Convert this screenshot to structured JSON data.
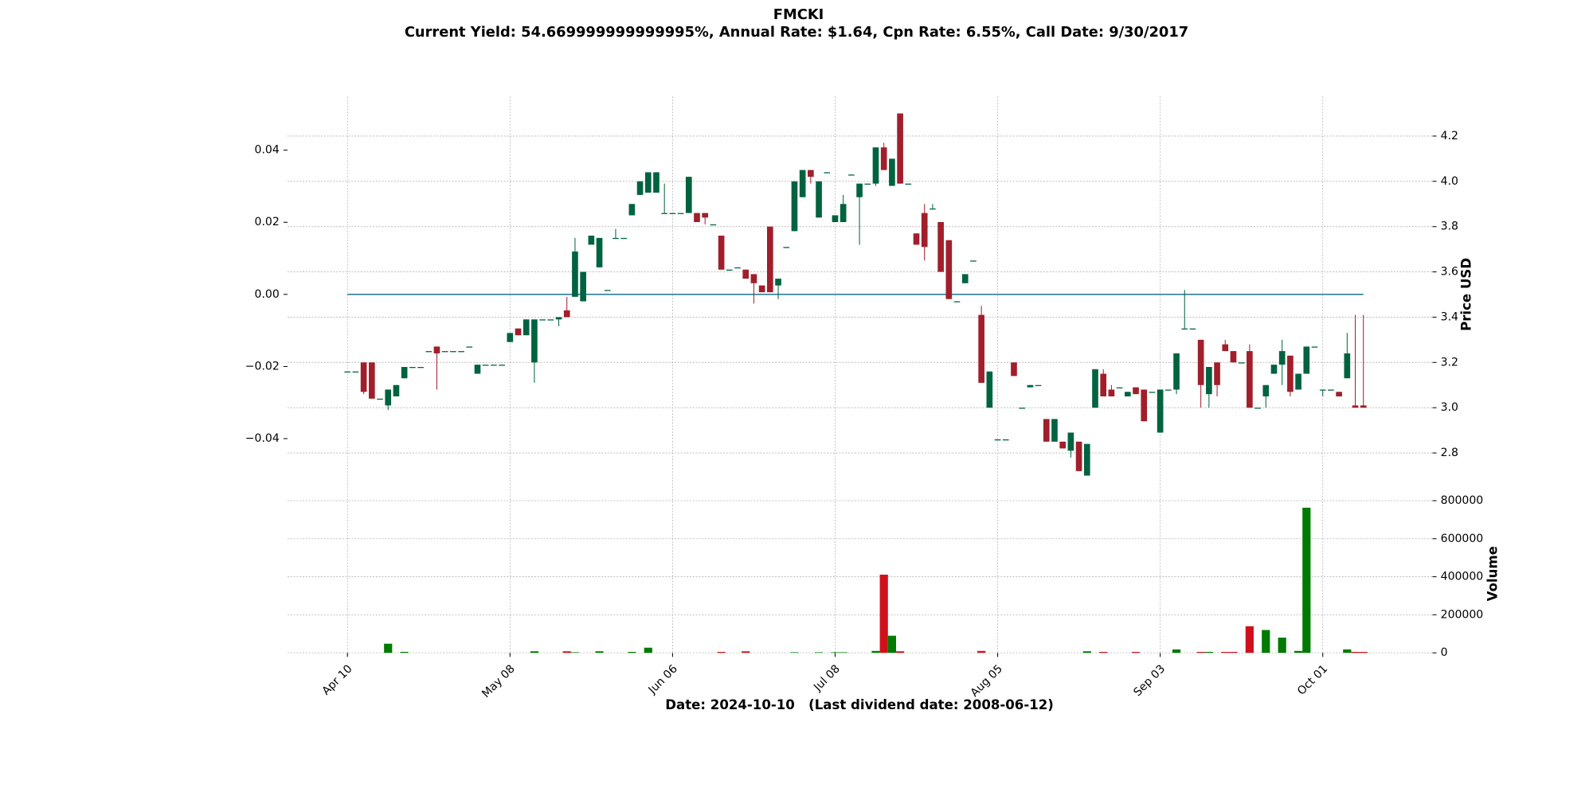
{
  "chart_data": {
    "type": "candlestick",
    "title": "FMCKI",
    "subtitle": "Current Yield: 54.669999999999995%, Annual Rate: $1.64, Cpn Rate: 6.55%, Call Date: 9/30/2017",
    "xlabel": "Date: 2024-10-10   (Last dividend date: 2008-06-12)",
    "ylabel": "Price USD",
    "categories": [
      "Apr 10",
      null,
      null,
      null,
      null,
      null,
      null,
      null,
      null,
      null,
      null,
      null,
      null,
      null,
      null,
      null,
      null,
      null,
      null,
      null,
      "May 08",
      null,
      null,
      null,
      null,
      null,
      null,
      null,
      null,
      null,
      null,
      null,
      null,
      null,
      null,
      null,
      null,
      null,
      null,
      null,
      "Jun 06",
      null,
      null,
      null,
      null,
      null,
      null,
      null,
      null,
      null,
      null,
      null,
      null,
      null,
      null,
      null,
      null,
      null,
      null,
      null,
      "Jul 08",
      null,
      null,
      null,
      null,
      null,
      null,
      null,
      null,
      null,
      null,
      null,
      null,
      null,
      null,
      null,
      null,
      null,
      null,
      null,
      "Aug 05",
      null,
      null,
      null,
      null,
      null,
      null,
      null,
      null,
      null,
      null,
      null,
      null,
      null,
      null,
      null,
      null,
      null,
      null,
      null,
      "Sep 03",
      null,
      null,
      null,
      null,
      null,
      null,
      null,
      null,
      null,
      null,
      null,
      null,
      null,
      null,
      null,
      null,
      null,
      null,
      null,
      "Oct 01",
      null,
      null,
      null,
      null,
      null
    ],
    "open": [
      3.16,
      3.16,
      3.2,
      3.2,
      3.04,
      3.01,
      3.05,
      3.13,
      3.18,
      3.18,
      3.25,
      3.27,
      3.25,
      3.25,
      3.25,
      3.27,
      3.15,
      3.19,
      3.19,
      3.19,
      3.29,
      3.35,
      3.32,
      3.2,
      3.39,
      3.39,
      3.39,
      3.43,
      3.49,
      3.47,
      3.72,
      3.62,
      3.52,
      3.75,
      3.75,
      3.85,
      3.94,
      3.95,
      3.95,
      3.86,
      3.86,
      3.86,
      3.86,
      3.86,
      3.86,
      3.81,
      3.76,
      3.61,
      3.62,
      3.61,
      3.59,
      3.54,
      3.8,
      3.54,
      3.71,
      3.78,
      3.93,
      4.05,
      3.84,
      4.04,
      3.82,
      3.82,
      4.03,
      3.93,
      3.99,
      3.99,
      4.15,
      3.98,
      4.3,
      3.99,
      3.77,
      3.86,
      3.88,
      3.82,
      3.74,
      3.47,
      3.55,
      3.65,
      3.41,
      3.0,
      2.86,
      2.86,
      3.2,
      3.0,
      3.09,
      3.1,
      2.95,
      2.85,
      2.85,
      2.81,
      2.85,
      2.7,
      3.0,
      3.15,
      3.08,
      3.09,
      3.05,
      3.09,
      3.08,
      3.07,
      2.89,
      3.08,
      3.08,
      3.35,
      3.35,
      3.3,
      3.06,
      3.2,
      3.28,
      3.25,
      3.2,
      3.25,
      3.0,
      3.05,
      3.15,
      3.19,
      3.23,
      3.08,
      3.15,
      3.27,
      3.08,
      3.08,
      3.07,
      3.13,
      3.01,
      3.01
    ],
    "high": [
      3.16,
      3.16,
      3.2,
      3.2,
      3.04,
      3.08,
      3.1,
      3.18,
      3.18,
      3.18,
      3.25,
      3.27,
      3.25,
      3.25,
      3.25,
      3.27,
      3.19,
      3.19,
      3.19,
      3.19,
      3.33,
      3.35,
      3.39,
      3.39,
      3.39,
      3.39,
      3.4,
      3.49,
      3.75,
      3.6,
      3.76,
      3.75,
      3.52,
      3.79,
      3.75,
      3.9,
      4.0,
      4.04,
      4.04,
      3.99,
      3.86,
      3.86,
      4.02,
      3.86,
      3.86,
      3.81,
      3.76,
      3.61,
      3.62,
      3.61,
      3.59,
      3.54,
      3.8,
      3.57,
      3.71,
      4.0,
      4.05,
      4.05,
      4.0,
      4.04,
      3.85,
      3.94,
      4.03,
      3.99,
      3.99,
      4.15,
      4.17,
      4.1,
      4.3,
      3.99,
      3.77,
      3.9,
      3.9,
      3.82,
      3.74,
      3.47,
      3.59,
      3.65,
      3.45,
      3.16,
      2.86,
      2.86,
      3.2,
      3.0,
      3.1,
      3.1,
      2.95,
      2.95,
      2.85,
      2.89,
      2.85,
      2.84,
      3.17,
      3.17,
      3.1,
      3.09,
      3.07,
      3.09,
      3.08,
      3.07,
      3.08,
      3.08,
      3.24,
      3.52,
      3.35,
      3.3,
      3.18,
      3.2,
      3.3,
      3.25,
      3.2,
      3.28,
      3.0,
      3.1,
      3.19,
      3.3,
      3.23,
      3.15,
      3.27,
      3.27,
      3.08,
      3.08,
      3.07,
      3.33,
      3.41,
      3.41
    ],
    "low": [
      3.16,
      3.16,
      3.06,
      3.04,
      3.04,
      2.99,
      3.05,
      3.13,
      3.18,
      3.18,
      3.25,
      3.08,
      3.25,
      3.25,
      3.25,
      3.27,
      3.15,
      3.19,
      3.19,
      3.19,
      3.29,
      3.32,
      3.32,
      3.11,
      3.39,
      3.39,
      3.36,
      3.4,
      3.49,
      3.47,
      3.72,
      3.62,
      3.52,
      3.75,
      3.75,
      3.85,
      3.94,
      3.95,
      3.95,
      3.86,
      3.86,
      3.86,
      3.86,
      3.82,
      3.81,
      3.81,
      3.61,
      3.61,
      3.62,
      3.57,
      3.46,
      3.51,
      3.51,
      3.48,
      3.71,
      3.78,
      3.93,
      3.99,
      3.84,
      4.04,
      3.82,
      3.82,
      4.03,
      3.72,
      3.99,
      3.98,
      4.05,
      3.98,
      3.99,
      3.99,
      3.72,
      3.65,
      3.88,
      3.6,
      3.48,
      3.47,
      3.55,
      3.65,
      3.11,
      3.0,
      2.86,
      2.86,
      3.14,
      3.0,
      3.09,
      3.1,
      2.85,
      2.85,
      2.82,
      2.78,
      2.72,
      2.7,
      3.0,
      3.05,
      3.05,
      3.09,
      3.05,
      3.06,
      2.94,
      3.07,
      2.89,
      3.08,
      3.06,
      3.35,
      3.35,
      3.0,
      3.0,
      3.05,
      3.25,
      3.2,
      3.2,
      3.0,
      3.0,
      3.0,
      3.15,
      3.1,
      3.05,
      3.08,
      3.15,
      3.27,
      3.05,
      3.08,
      3.05,
      3.13,
      3.0,
      3.0
    ],
    "close": [
      3.16,
      3.16,
      3.07,
      3.04,
      3.04,
      3.08,
      3.1,
      3.18,
      3.18,
      3.18,
      3.25,
      3.24,
      3.25,
      3.25,
      3.25,
      3.27,
      3.19,
      3.19,
      3.19,
      3.19,
      3.33,
      3.32,
      3.39,
      3.39,
      3.39,
      3.39,
      3.4,
      3.4,
      3.69,
      3.6,
      3.76,
      3.75,
      3.52,
      3.75,
      3.75,
      3.9,
      4.0,
      4.04,
      4.04,
      3.86,
      3.86,
      3.86,
      4.02,
      3.82,
      3.84,
      3.81,
      3.61,
      3.61,
      3.62,
      3.57,
      3.55,
      3.51,
      3.51,
      3.57,
      3.71,
      4.0,
      4.05,
      4.02,
      4.0,
      4.04,
      3.85,
      3.9,
      4.03,
      3.99,
      3.99,
      4.15,
      4.05,
      4.1,
      3.99,
      3.99,
      3.72,
      3.71,
      3.88,
      3.6,
      3.48,
      3.47,
      3.59,
      3.65,
      3.11,
      3.16,
      2.86,
      2.86,
      3.14,
      3.0,
      3.1,
      3.1,
      2.85,
      2.95,
      2.82,
      2.89,
      2.72,
      2.84,
      3.17,
      3.05,
      3.05,
      3.09,
      3.07,
      3.06,
      2.94,
      3.07,
      3.08,
      3.08,
      3.24,
      3.35,
      3.35,
      3.1,
      3.18,
      3.1,
      3.25,
      3.2,
      3.2,
      3.0,
      3.0,
      3.1,
      3.19,
      3.25,
      3.07,
      3.15,
      3.27,
      3.27,
      3.08,
      3.08,
      3.05,
      3.24,
      3.0,
      3.0
    ],
    "up_color": "#006340",
    "down_color": "#a01f2b",
    "ylim": [
      2.693,
      4.375
    ],
    "yticks": [
      {
        "value": 2.8,
        "label": "2.8"
      },
      {
        "value": 3,
        "label": "3.0"
      },
      3.2,
      3.4,
      3.6,
      3.8,
      {
        "value": 4,
        "label": "4.0"
      },
      4.2
    ],
    "y2lim": [
      -0.0507,
      0.0549
    ],
    "y2ticks": [
      {
        "value": -0.04,
        "label": "−0.04"
      },
      {
        "value": -0.02,
        "label": "−0.02"
      },
      {
        "value": 0,
        "label": "0.00"
      },
      0.02,
      0.04
    ],
    "hline": {
      "value": 0,
      "axis": "y2",
      "color": "#2e7d9a"
    },
    "grid": true,
    "volume": {
      "ylabel": "Volume",
      "values": [
        0,
        0,
        0,
        0,
        0,
        48000,
        0,
        5000,
        0,
        0,
        0,
        0,
        0,
        0,
        0,
        0,
        0,
        0,
        0,
        0,
        0,
        0,
        0,
        8000,
        0,
        0,
        0,
        8000,
        3000,
        0,
        0,
        8000,
        0,
        0,
        0,
        5000,
        0,
        27000,
        0,
        0,
        0,
        0,
        0,
        0,
        0,
        0,
        5000,
        0,
        0,
        8000,
        0,
        0,
        0,
        0,
        0,
        3000,
        0,
        0,
        3000,
        0,
        3000,
        3000,
        0,
        0,
        0,
        10000,
        411000,
        90000,
        8000,
        0,
        0,
        0,
        0,
        0,
        0,
        0,
        0,
        0,
        10000,
        0,
        0,
        0,
        0,
        0,
        0,
        0,
        0,
        0,
        0,
        0,
        0,
        8000,
        0,
        5000,
        0,
        0,
        0,
        5000,
        0,
        0,
        0,
        0,
        18000,
        0,
        0,
        5000,
        5000,
        0,
        5000,
        5000,
        0,
        140000,
        0,
        120000,
        0,
        80000,
        0,
        10000,
        763000,
        0,
        0,
        0,
        0,
        18000,
        5000,
        5000
      ],
      "up_color": "#007a00",
      "down_color": "#d0111b",
      "ylim": [
        0,
        870000
      ],
      "yticks": [
        0,
        200000,
        400000,
        600000,
        800000
      ]
    }
  }
}
